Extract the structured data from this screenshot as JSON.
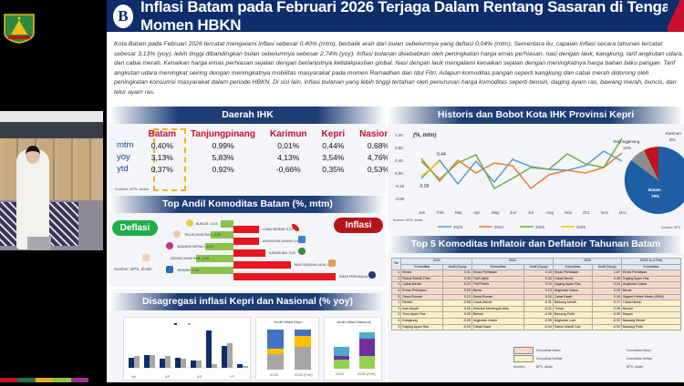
{
  "header": {
    "title": "Inflasi Batam pada Februari 2026 Terjaga Dalam Rentang Sasaran di Tengah Momen HBKN",
    "logo_letter": "B"
  },
  "intro": "Kota Batam pada Februari 2026 tercatat mengalami inflasi sebesar 0,40% (mtm), berbalik arah dari bulan sebelumnya yang deflasi 0,04% (mtm). Sementara itu, capaian inflasi secara tahunan tercatat sebesar 3,13% (yoy), lebih tinggi dibandingkan bulan sebelumnya sebesar 2,74% (yoy). Inflasi bulanan disebabkan oleh peningkatan harga emas perhiasan, nasi dengan lauk, kangkung, tarif angkutan udara, dan cabai merah. Kenaikan harga emas perhiasan sejalan dengan berlanjutnya ketidakpastian global. Nasi dengan lauk mengalami kenaikan sejalan dengan meningkatnya harga bahan baku pangan. Tarif angkutan udara meningkat seiring dengan meningkatnya mobilitas masyarakat pada momen Ramadhan dan Idul Fitri. Adapun komoditas pangan seperti kangkung dan cabai merah didorong oleh peningkatan konsumsi masyarakat dalam periode HBKN. Di sisi lain, inflasi bulanan yang lebih tinggi tertahan oleh penurunan harga komoditas seperti bensin, daging ayam ras, bawang merah, buncis, dan telur ayam ras.",
  "ihk": {
    "title": "Daerah IHK",
    "columns": [
      "Batam",
      "Tanjungpinang",
      "Karimun",
      "Kepri",
      "Nasional"
    ],
    "rows": [
      {
        "label": "mtm",
        "values": [
          "0,40%",
          "0,99%",
          "0,01%",
          "0,44%",
          "0,68%"
        ]
      },
      {
        "label": "yoy",
        "values": [
          "3,13%",
          "5,83%",
          "4,13%",
          "3,54%",
          "4,76%"
        ]
      },
      {
        "label": "ytd",
        "values": [
          "0,37%",
          "0,92%",
          "-0,66%",
          "0,35%",
          "0,53%"
        ]
      }
    ],
    "source": "Sumber: BPS, diolah"
  },
  "andil": {
    "title": "Top Andil Komoditas Batam (%, mtm)",
    "deflasi_label": "Deflasi",
    "inflasi_label": "Inflasi",
    "source": "Sumber: BPS, diolah",
    "deflasi": [
      {
        "label": "BUNCIS: -0,03",
        "width": 14
      },
      {
        "label": "TELUR AYAM RAS: -0,03",
        "width": 17
      },
      {
        "label": "BAWANG MERAH: -0,03",
        "width": 28
      },
      {
        "label": "DAGING AYAM RAS: -0,05",
        "width": 35
      },
      {
        "label": "BENSIN: -0,06",
        "width": 42
      }
    ],
    "inflasi": [
      {
        "label": "CABAI MERAH: 0,03",
        "width": 28
      },
      {
        "label": "ANGKUTAN UDARA: 0,03",
        "width": 28
      },
      {
        "label": "KANGKUNG: 0,03",
        "width": 35
      },
      {
        "label": "NASI DENGAN LAUK: 0,06",
        "width": 63
      },
      {
        "label": "EMAS PERHIASAN: 0,13",
        "width": 112
      }
    ]
  },
  "disag": {
    "title": "Disagregasi inflasi Kepri dan Nasional (% yoy)",
    "chart1_legend": [
      "Nasional",
      "Kepri"
    ],
    "chart1_groups": [
      "Inti",
      "AP",
      "AD",
      "VF"
    ],
    "chart2_title": "Andil Inflasi Kepri",
    "chart2_legend": [
      "CI",
      "AP",
      "VF"
    ],
    "chart2_x": [
      "2025",
      "2026 (Feb)"
    ],
    "chart3_title": "Andil Inflasi Nasional",
    "chart3_legend": [
      "CI",
      "AP",
      "VF"
    ],
    "chart3_x": [
      "2025",
      "2026 (Feb)"
    ]
  },
  "hist": {
    "title": "Historis dan Bobot Kota IHK Provinsi Kepri",
    "unit": "(%, mtm)",
    "source": "Sumber: BPS, diolah",
    "pie_source": "Sumber: BPS",
    "annotation_max": "0.44",
    "annotation_min": "-0.09"
  },
  "chart_data": [
    {
      "type": "line",
      "title": "Historis dan Bobot Kota IHK Provinsi Kepri",
      "ylabel": "(%, mtm)",
      "x": [
        "Jan",
        "Feb",
        "Mar",
        "Apr",
        "May",
        "Jun",
        "Jul",
        "Aug",
        "Sep",
        "Oct",
        "Nov",
        "Dec"
      ],
      "ylim": [
        -0.8,
        1.2
      ],
      "yticks": [
        "1.20",
        "0.80",
        "0.40",
        "0.00",
        "-0.40",
        "-0.80"
      ],
      "series": [
        {
          "name": "2023",
          "color": "#5b9bd5",
          "values": [
            -0.22,
            0.45,
            -0.3,
            0.42,
            -0.25,
            0.5,
            0.28,
            0.18,
            0.15,
            0.3,
            0.75,
            0.42
          ]
        },
        {
          "name": "2024",
          "color": "#ed7d31",
          "values": [
            0.52,
            -0.22,
            0.45,
            0.05,
            0.38,
            0.3,
            -0.45,
            -0.02,
            0.15,
            0.05,
            0.22,
            0.68
          ]
        },
        {
          "name": "2025",
          "color": "#70ad47",
          "values": [
            0.42,
            -0.15,
            0.35,
            0.6,
            -0.45,
            -0.12,
            0.22,
            0.15,
            0.65,
            0.35,
            0.22,
            1.15
          ]
        },
        {
          "name": "2026",
          "color": "#ffc000",
          "values": [
            -0.09,
            0.44
          ]
        }
      ]
    },
    {
      "type": "pie",
      "title": "Bobot Kota IHK",
      "categories": [
        "Batam",
        "Tanjungpinang",
        "Karimun"
      ],
      "values": [
        79,
        12,
        9
      ],
      "colors": [
        "#1f5fa8",
        "#8c8c8c",
        "#c0141e"
      ]
    },
    {
      "type": "bar",
      "title": "Disagregasi inflasi (% yoy)",
      "categories": [
        "Inti 2025",
        "Inti 2026 (Feb)",
        "AP 2025",
        "AP 2026 (Feb)",
        "AD 2025",
        "AD 2026 (Feb)",
        "VF 2025",
        "VF 2026 (Feb)"
      ],
      "series": [
        {
          "name": "Nasional",
          "color": "#0d2d6b",
          "values": [
            2.35,
            2.94,
            1.98,
            2.35,
            1.46,
            6.51,
            4.23,
            0.79
          ]
        },
        {
          "name": "Kepri",
          "color": "#a6a6a6",
          "values": [
            2.47,
            2.94,
            2.61,
            2.17,
            1.58,
            1.07,
            4.84,
            0.46
          ]
        }
      ]
    },
    {
      "type": "bar",
      "title": "Andil Inflasi Kepri",
      "categories": [
        "2025",
        "2026 (Feb)"
      ],
      "series": [
        {
          "name": "CI",
          "color": "#a6a6a6",
          "values": [
            1.89,
            2.17
          ]
        },
        {
          "name": "AP",
          "color": "#ffc000",
          "values": [
            0.58,
            0.87
          ]
        },
        {
          "name": "VF",
          "color": "#4472c4",
          "values": [
            1.07,
            0.51
          ]
        }
      ]
    },
    {
      "type": "bar",
      "title": "Andil Inflasi Nasional",
      "categories": [
        "2025",
        "2026 (Feb)"
      ],
      "series": [
        {
          "name": "CI",
          "color": "#92d050",
          "values": [
            1.51,
            1.72
          ]
        },
        {
          "name": "AP",
          "color": "#7030a0",
          "values": [
            0.3,
            2.3
          ]
        },
        {
          "name": "VF",
          "color": "#4bacc6",
          "values": [
            1.25,
            0.74
          ]
        }
      ]
    }
  ],
  "top5": {
    "title": "Top 5 Komoditas Inflatoir dan Deflatoir Tahunan Batam",
    "years": [
      "2023",
      "2024",
      "2025",
      "2026* (s.d Feb)"
    ],
    "col_no": "No",
    "col_komoditas": "Komoditas",
    "col_andil": "Andil (%yoy)",
    "inflatoir": [
      [
        "1",
        "Beras",
        "0.41",
        "Emas Perhiasan",
        "0.43",
        "Emas Perhiasan",
        "1.87",
        "Emas Perhiasan"
      ],
      [
        "2",
        "Rokok Kretek Filter",
        "0.33",
        "Tarif Listrik",
        "0.33",
        "Cabai Merah",
        "0.46",
        "Daging Ayam Ras"
      ],
      [
        "3",
        "Cabai Merah",
        "0.22",
        "Tarif Parkir",
        "0.23",
        "Daging Ayam Ras",
        "0.24",
        "Angkutan Udara"
      ],
      [
        "4",
        "Emas Perhiasan",
        "0.20",
        "Beras",
        "0.13",
        "Angkutan Udara",
        "0.20",
        "Beras"
      ],
      [
        "5",
        "Sewa Rumah",
        "0.12",
        "Sewa Rumah",
        "0.10",
        "Cabai Rawit",
        "0.19",
        "Sigaret Kretek Mesin (SKM)"
      ]
    ],
    "deflatoir": [
      [
        "1",
        "Bensin",
        "-0.08",
        "Cabai Merah",
        "-0.31",
        "Bawang Merah",
        "-0.17",
        "Cabai Merah"
      ],
      [
        "2",
        "Ikan Mujair",
        "-0.06",
        "Sekolah Menengah Atas",
        "-0.21",
        "Tomat",
        "-0.06",
        "Bensin"
      ],
      [
        "3",
        "Telur Ayam Ras",
        "-0.05",
        "Bensin",
        "-0.08",
        "Bawang Putih",
        "-0.05",
        "Bayam"
      ],
      [
        "4",
        "Kangkung",
        "-0.05",
        "Angkutan Udara",
        "-0.06",
        "Angkutan Laut",
        "-0.02",
        "Bawang Merah"
      ],
      [
        "5",
        "Daging Ayam Ras",
        "-0.04",
        "Cabai Rawit",
        "-0.04",
        "Sabun Mandi Cair",
        "-0.02",
        "Bawang Putih"
      ]
    ],
    "legend": [
      "Komoditas Inflasi",
      "Komoditas Deflasi",
      "BPS, diolah"
    ],
    "legend_source": "Sumber:"
  },
  "video": {
    "strip_colors": [
      "#c0141e",
      "#2a6e4a",
      "#e0b020",
      "#8bc34a",
      "#a0308c"
    ]
  }
}
